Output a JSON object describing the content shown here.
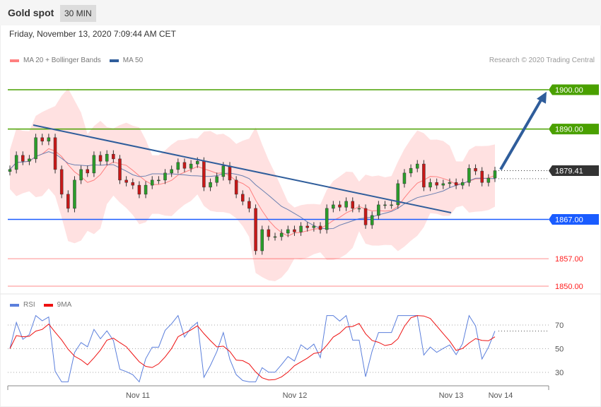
{
  "header": {
    "title": "Gold spot",
    "timeframe": "30 MIN",
    "datetime": "Friday, November 13, 2020 7:09:44 AM CET"
  },
  "credit": "Research © 2020 Trading Central",
  "chart_data": [
    {
      "type": "candlestick",
      "legend": [
        {
          "name": "MA 20 + Bollinger Bands",
          "color": "#ff8080"
        },
        {
          "name": "MA 50",
          "color": "#2f5d9b"
        }
      ],
      "ylim": [
        1850,
        1900
      ],
      "closes": [
        1879.7,
        1883.3,
        1881.8,
        1882.4,
        1887.8,
        1886.9,
        1887.8,
        1879.7,
        1873.4,
        1869.8,
        1877.0,
        1879.7,
        1878.8,
        1883.3,
        1881.8,
        1883.6,
        1882.4,
        1877.0,
        1876.4,
        1875.7,
        1873.4,
        1875.7,
        1877.0,
        1877.0,
        1878.8,
        1879.7,
        1881.5,
        1880.0,
        1881.1,
        1881.8,
        1875.2,
        1876.4,
        1877.9,
        1880.6,
        1877.0,
        1873.4,
        1871.6,
        1869.8,
        1859.0,
        1864.4,
        1862.6,
        1862.6,
        1863.5,
        1864.4,
        1863.8,
        1865.3,
        1864.9,
        1865.3,
        1864.4,
        1869.8,
        1870.7,
        1870.1,
        1871.6,
        1869.8,
        1869.8,
        1865.6,
        1868.0,
        1870.7,
        1870.7,
        1870.7,
        1876.1,
        1878.8,
        1880.0,
        1881.1,
        1875.2,
        1876.4,
        1875.7,
        1876.1,
        1876.4,
        1875.7,
        1876.4,
        1880.0,
        1879.3,
        1876.4,
        1877.5,
        1879.4
      ],
      "levels": [
        {
          "value": 1900.0,
          "label": "1900.00",
          "color": "#4aa000",
          "boxed": true
        },
        {
          "value": 1890.0,
          "label": "1890.00",
          "color": "#4aa000",
          "boxed": true
        },
        {
          "value": 1879.41,
          "label": "1879.41",
          "color": "#333333",
          "boxed": true,
          "dotted": true
        },
        {
          "value": 1867.0,
          "label": "1867.00",
          "color": "#1a5cff",
          "boxed": true
        },
        {
          "value": 1857.0,
          "label": "1857.00",
          "color": "#ff2020",
          "boxed": false
        },
        {
          "value": 1850.0,
          "label": "1850.00",
          "color": "#ff2020",
          "boxed": false
        }
      ],
      "trendline": {
        "from": 1891.0,
        "to": 1868.7,
        "color": "#2f5d9b"
      },
      "arrow": {
        "from": 1879.7,
        "to": 1899.5,
        "color": "#2f5d9b"
      },
      "x_ticks": [
        "Nov 11",
        "Nov 12",
        "Nov 13",
        "Nov 14"
      ]
    },
    {
      "type": "line",
      "legend": [
        {
          "name": "RSI",
          "color": "#5b7fdc"
        },
        {
          "name": "9MA",
          "color": "#ee1111"
        }
      ],
      "ylim": [
        20,
        80
      ],
      "y_ticks": [
        "70",
        "50",
        "30"
      ]
    }
  ]
}
